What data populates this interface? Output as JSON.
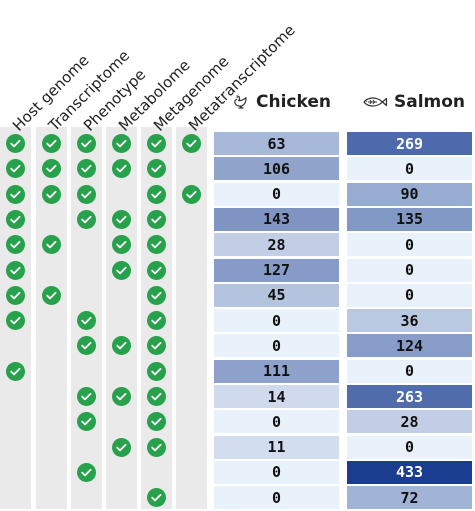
{
  "chart_data": {
    "type": "heatmap",
    "omics": [
      "Host genome",
      "Transcriptome",
      "Phenotype",
      "Metabolome",
      "Metagenome",
      "Metatranscriptome"
    ],
    "species": [
      "Chicken",
      "Salmon"
    ],
    "species_icons": [
      "chicken-icon",
      "salmon-icon"
    ],
    "rows": [
      {
        "omics": [
          1,
          1,
          1,
          1,
          1,
          1
        ],
        "values": [
          63,
          269
        ]
      },
      {
        "omics": [
          1,
          1,
          1,
          1,
          1,
          0
        ],
        "values": [
          106,
          0
        ]
      },
      {
        "omics": [
          1,
          1,
          1,
          0,
          1,
          1
        ],
        "values": [
          0,
          90
        ]
      },
      {
        "omics": [
          1,
          0,
          1,
          1,
          1,
          0
        ],
        "values": [
          143,
          135
        ]
      },
      {
        "omics": [
          1,
          1,
          0,
          1,
          1,
          0
        ],
        "values": [
          28,
          0
        ]
      },
      {
        "omics": [
          1,
          0,
          0,
          1,
          1,
          0
        ],
        "values": [
          127,
          0
        ]
      },
      {
        "omics": [
          1,
          1,
          0,
          0,
          1,
          0
        ],
        "values": [
          45,
          0
        ]
      },
      {
        "omics": [
          1,
          0,
          1,
          0,
          1,
          0
        ],
        "values": [
          0,
          36
        ]
      },
      {
        "omics": [
          0,
          0,
          1,
          1,
          1,
          0
        ],
        "values": [
          0,
          124
        ]
      },
      {
        "omics": [
          1,
          0,
          0,
          0,
          1,
          0
        ],
        "values": [
          111,
          0
        ]
      },
      {
        "omics": [
          0,
          0,
          1,
          1,
          1,
          0
        ],
        "values": [
          14,
          263
        ]
      },
      {
        "omics": [
          0,
          0,
          1,
          0,
          1,
          0
        ],
        "values": [
          0,
          28
        ]
      },
      {
        "omics": [
          0,
          0,
          0,
          1,
          1,
          0
        ],
        "values": [
          11,
          0
        ]
      },
      {
        "omics": [
          0,
          0,
          1,
          0,
          0,
          0
        ],
        "values": [
          0,
          433
        ]
      },
      {
        "omics": [
          0,
          0,
          0,
          0,
          1,
          0
        ],
        "values": [
          0,
          72
        ]
      }
    ],
    "color_scale": {
      "min": 0,
      "max": 433,
      "low": "#e9f1fa",
      "high": "#1a3d8f"
    },
    "check_color": "#27a14b"
  }
}
